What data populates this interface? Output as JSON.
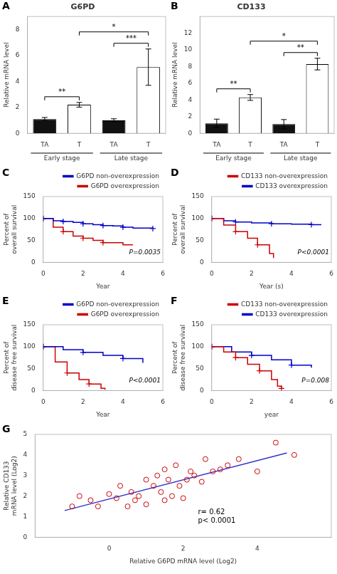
{
  "chart_data": [
    {
      "type": "bar",
      "panel_label": "A",
      "title": "G6PD",
      "y_label": "Relative mRNA level",
      "categories": [
        "TA",
        "T",
        "TA",
        "T"
      ],
      "values": [
        1.1,
        2.2,
        1.0,
        5.1
      ],
      "errors": [
        0.12,
        0.18,
        0.12,
        1.4
      ],
      "colors": [
        "#111111",
        "#ffffff",
        "#111111",
        "#ffffff"
      ],
      "group_labels": [
        "Early stage",
        "Late stage"
      ],
      "annotations": [
        "**",
        "***",
        "*"
      ],
      "ylim": [
        0,
        9
      ],
      "yticks": [
        0,
        2,
        4,
        6,
        8
      ],
      "grid": false
    },
    {
      "type": "bar",
      "panel_label": "B",
      "title": "CD133",
      "y_label": "Relative mRNA level",
      "categories": [
        "TA",
        "T",
        "TA",
        "T"
      ],
      "values": [
        1.2,
        4.3,
        1.1,
        8.3
      ],
      "errors": [
        0.5,
        0.35,
        0.55,
        0.7
      ],
      "colors": [
        "#111111",
        "#ffffff",
        "#111111",
        "#ffffff"
      ],
      "group_labels": [
        "Early stage",
        "Late stage"
      ],
      "annotations": [
        "**",
        "**",
        "*"
      ],
      "ylim": [
        0,
        14
      ],
      "yticks": [
        0,
        2,
        4,
        6,
        8,
        10,
        12
      ],
      "grid": false
    },
    {
      "type": "line",
      "panel_label": "C",
      "x_label": "Year",
      "y_label": "Percent of\noverall survival",
      "xlim": [
        0,
        6
      ],
      "xticks": [
        0,
        2,
        4,
        6
      ],
      "ylim": [
        0,
        150
      ],
      "yticks": [
        0,
        50,
        100,
        150
      ],
      "line_style": "steps",
      "marker": "+",
      "legend": "upper right",
      "grid": false,
      "annotations": [
        "P=0.0035"
      ],
      "series": [
        {
          "name": "G6PD non-overexpression",
          "color": "#0000cc",
          "x": [
            0,
            0.3,
            0.5,
            0.8,
            1.0,
            1.2,
            1.5,
            1.8,
            2.0,
            2.2,
            2.5,
            2.8,
            3.0,
            3.2,
            3.5,
            3.8,
            4.0,
            4.2,
            4.5,
            5.0,
            5.5
          ],
          "values": [
            100,
            100,
            95,
            95,
            93,
            93,
            91,
            91,
            88,
            88,
            86,
            86,
            84,
            84,
            83,
            83,
            80,
            80,
            78,
            78,
            77
          ]
        },
        {
          "name": "G6PD overexpression",
          "color": "#cc0000",
          "x": [
            0,
            0.3,
            0.5,
            0.7,
            1.0,
            1.2,
            1.5,
            1.7,
            2.0,
            2.2,
            2.5,
            2.8,
            3.0,
            3.5,
            4.0,
            4.5
          ],
          "values": [
            100,
            100,
            80,
            80,
            70,
            70,
            60,
            60,
            55,
            55,
            50,
            50,
            45,
            45,
            40,
            40
          ]
        }
      ]
    },
    {
      "type": "line",
      "panel_label": "D",
      "x_label": "Year (s)",
      "y_label": "Percent of\noverall survival",
      "xlim": [
        0,
        6
      ],
      "xticks": [
        0,
        2,
        4,
        6
      ],
      "ylim": [
        0,
        150
      ],
      "yticks": [
        0,
        50,
        100,
        150
      ],
      "line_style": "steps",
      "marker": "+",
      "legend": "upper right",
      "grid": false,
      "annotations": [
        "P<0.0001"
      ],
      "series": [
        {
          "name": "CD133 non-overexpression",
          "color": "#cc0000",
          "x": [
            0,
            0.3,
            0.6,
            0.9,
            1.2,
            1.5,
            1.8,
            2.0,
            2.3,
            2.6,
            2.9,
            3.1
          ],
          "values": [
            100,
            100,
            85,
            85,
            70,
            70,
            55,
            55,
            40,
            40,
            20,
            10
          ]
        },
        {
          "name": "CD133 overexpression",
          "color": "#0000cc",
          "x": [
            0,
            0.3,
            0.6,
            0.9,
            1.2,
            1.5,
            2.0,
            2.5,
            3.0,
            3.5,
            4.0,
            4.5,
            5.0,
            5.5
          ],
          "values": [
            100,
            100,
            95,
            95,
            92,
            92,
            90,
            90,
            88,
            88,
            87,
            87,
            86,
            86
          ]
        }
      ]
    },
    {
      "type": "line",
      "panel_label": "E",
      "x_label": "Year",
      "y_label": "Percent of\ndisease free survival",
      "xlim": [
        0,
        6
      ],
      "xticks": [
        0,
        2,
        4,
        6
      ],
      "ylim": [
        0,
        150
      ],
      "yticks": [
        0,
        50,
        100,
        150
      ],
      "line_style": "steps",
      "marker": "+",
      "legend": "upper right",
      "grid": false,
      "annotations": [
        "P<0.0001"
      ],
      "series": [
        {
          "name": "G6PD non-overexpression",
          "color": "#0000cc",
          "x": [
            0,
            0.5,
            1.0,
            1.5,
            2.0,
            2.5,
            3.0,
            3.5,
            4.0,
            4.5,
            5.0
          ],
          "values": [
            100,
            100,
            93,
            93,
            87,
            87,
            80,
            80,
            73,
            73,
            63
          ]
        },
        {
          "name": "G6PD overexpression",
          "color": "#cc0000",
          "x": [
            0,
            0.3,
            0.6,
            0.9,
            1.2,
            1.5,
            1.8,
            2.0,
            2.3,
            2.6,
            2.9,
            3.1
          ],
          "values": [
            100,
            100,
            65,
            65,
            40,
            40,
            25,
            25,
            15,
            15,
            5,
            2
          ]
        }
      ]
    },
    {
      "type": "line",
      "panel_label": "F",
      "x_label": "year",
      "y_label": "Percent of\ndisease free survival",
      "xlim": [
        0,
        6
      ],
      "xticks": [
        0,
        2,
        4,
        6
      ],
      "ylim": [
        0,
        150
      ],
      "yticks": [
        0,
        50,
        100,
        150
      ],
      "line_style": "steps",
      "marker": "+",
      "legend": "upper right",
      "grid": false,
      "annotations": [
        "P=0.008"
      ],
      "series": [
        {
          "name": "CD133 non-overexpression",
          "color": "#cc0000",
          "x": [
            0,
            0.3,
            0.6,
            0.9,
            1.2,
            1.5,
            1.8,
            2.1,
            2.4,
            2.7,
            3.0,
            3.3,
            3.5
          ],
          "values": [
            100,
            100,
            88,
            88,
            75,
            75,
            60,
            60,
            45,
            45,
            25,
            10,
            5
          ]
        },
        {
          "name": "CD133 overexpression",
          "color": "#0000cc",
          "x": [
            0,
            0.5,
            1.0,
            1.5,
            2.0,
            2.5,
            3.0,
            3.5,
            4.0,
            4.5,
            5.0
          ],
          "values": [
            100,
            100,
            88,
            88,
            80,
            80,
            70,
            70,
            58,
            58,
            52
          ]
        }
      ]
    },
    {
      "type": "scatter",
      "panel_label": "G",
      "x_label": "Relative G6PD mRNA level (Log2)",
      "y_label": "Relative CD133\nmRNA level (Log2)",
      "annotations": [
        "r= 0.62\np< 0.0001"
      ],
      "xlim": [
        -2,
        6
      ],
      "xticks": [
        0,
        2,
        4
      ],
      "ylim": [
        0,
        5
      ],
      "yticks": [
        0,
        1,
        2,
        3,
        4,
        5
      ],
      "grid": false,
      "series": [
        {
          "type": "scatter",
          "color": "#cc0000",
          "marker": "o",
          "x": [
            -1.0,
            -0.8,
            -0.5,
            -0.3,
            0.0,
            0.2,
            0.3,
            0.5,
            0.6,
            0.7,
            0.8,
            1.0,
            1.0,
            1.2,
            1.3,
            1.4,
            1.5,
            1.5,
            1.6,
            1.7,
            1.8,
            1.9,
            2.0,
            2.1,
            2.2,
            2.3,
            2.5,
            2.6,
            2.8,
            3.0,
            3.2,
            3.5,
            4.0,
            4.5,
            5.0
          ],
          "values": [
            1.5,
            2.0,
            1.8,
            1.5,
            2.1,
            1.9,
            2.5,
            1.5,
            2.2,
            1.8,
            2.0,
            1.6,
            2.8,
            2.5,
            3.0,
            2.2,
            1.8,
            3.3,
            2.8,
            2.0,
            3.5,
            2.5,
            1.9,
            2.8,
            3.2,
            3.0,
            2.7,
            3.8,
            3.2,
            3.3,
            3.5,
            3.8,
            3.2,
            4.6,
            4.0
          ]
        },
        {
          "type": "line",
          "color": "#3333cc",
          "x": [
            -1.2,
            4.8
          ],
          "values": [
            1.3,
            4.1
          ]
        }
      ]
    }
  ]
}
